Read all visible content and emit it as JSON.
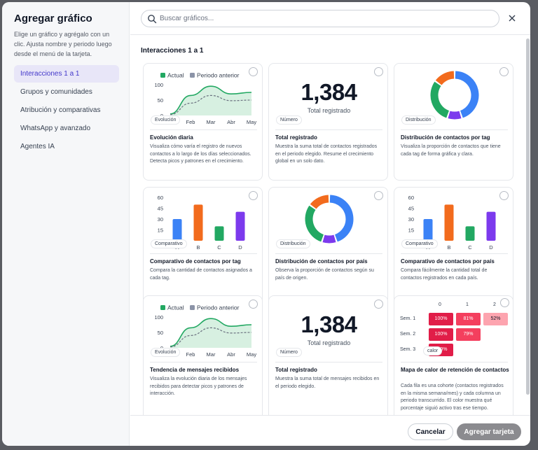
{
  "sidebar": {
    "title": "Agregar gráfico",
    "description": "Elige un gráfico y agrégalo con un clic. Ajusta nombre y periodo luego desde el menú de la tarjeta.",
    "items": [
      {
        "label": "Interacciones 1 a 1",
        "active": true
      },
      {
        "label": "Grupos y comunidades",
        "active": false
      },
      {
        "label": "Atribución y comparativas",
        "active": false
      },
      {
        "label": "WhatsApp y avanzado",
        "active": false
      },
      {
        "label": "Agentes IA",
        "active": false
      }
    ]
  },
  "search": {
    "placeholder": "Buscar gráficos...",
    "value": ""
  },
  "section": {
    "title": "Interacciones 1 a 1"
  },
  "colors": {
    "accent": "#4338ca",
    "green": "#22a862",
    "blue": "#3b82f6",
    "orange": "#f26b1d",
    "purple": "#7c3aed",
    "heat_dark": "#e11d48",
    "heat_light": "#f87185"
  },
  "cards": [
    {
      "badge": "Evolución",
      "title": "Evolución diaria",
      "desc": "Visualiza cómo varía el registro de nuevos contactos a lo largo de los días seleccionados. Detecta picos y patrones en el crecimiento."
    },
    {
      "badge": "Número",
      "title": "Total registrado",
      "desc": "Muestra la suma total de contactos registrados en el periodo elegido. Resume el crecimiento global en un solo dato.",
      "value": "1,384",
      "sub": "Total registrado"
    },
    {
      "badge": "Distribución",
      "title": "Distribución de contactos por tag",
      "desc": "Visualiza la proporción de contactos que tiene cada tag de forma gráfica y clara."
    },
    {
      "badge": "Comparativo",
      "title": "Comparativo de contactos por tag",
      "desc": "Compara la cantidad de contactos asignados a cada tag."
    },
    {
      "badge": "Distribución",
      "title": "Distribución de contactos por país",
      "desc": "Observa la proporción de contactos según su país de origen."
    },
    {
      "badge": "Comparativo",
      "title": "Comparativo de contactos por país",
      "desc": "Compara fácilmente la cantidad total de contactos registrados en cada país."
    },
    {
      "badge": "Evolución",
      "title": "Tendencia de mensajes recibidos",
      "desc": "Visualiza la evolución diaria de los mensajes recibidos para detectar picos y patrones de interacción."
    },
    {
      "badge": "Número",
      "title": "Total registrado",
      "desc": "Muestra la suma total de mensajes recibidos en el periodo elegido.",
      "value": "1,384",
      "sub": "Total registrado"
    },
    {
      "badge": "calor",
      "title": "Mapa de calor de retención de contactos",
      "desc": "Cada fila es una cohorte (contactos registrados en la misma semana/mes) y cada columna un periodo transcurrido. El color muestra qué porcentaje siguió activo tras ese tiempo."
    }
  ],
  "line_chart": {
    "legend": [
      "Actual",
      "Periodo anterior"
    ],
    "categories": [
      "Jan",
      "Feb",
      "Mar",
      "Abr",
      "May"
    ],
    "ticks": [
      "100",
      "50",
      "0"
    ],
    "actual": [
      5,
      65,
      95,
      70,
      75
    ],
    "anterior": [
      3,
      40,
      65,
      48,
      50
    ],
    "ylim": [
      0,
      100
    ]
  },
  "donut": {
    "segments": [
      {
        "value": 45,
        "color": "#3b82f6"
      },
      {
        "value": 10,
        "color": "#7c3aed"
      },
      {
        "value": 30,
        "color": "#22a862"
      },
      {
        "value": 15,
        "color": "#f26b1d"
      }
    ]
  },
  "bar_chart": {
    "categories": [
      "A",
      "B",
      "C",
      "D"
    ],
    "values": [
      30,
      50,
      20,
      40
    ],
    "colors": [
      "#3b82f6",
      "#f26b1d",
      "#22a862",
      "#7c3aed"
    ],
    "ticks": [
      "60",
      "45",
      "30",
      "15",
      "0"
    ],
    "ylim": [
      0,
      60
    ]
  },
  "heatmap": {
    "cols": [
      "0",
      "1",
      "2"
    ],
    "rows": [
      {
        "label": "Sem. 1",
        "values": [
          "100%",
          "81%",
          "52%"
        ]
      },
      {
        "label": "Sem. 2",
        "values": [
          "100%",
          "79%"
        ]
      },
      {
        "label": "Sem. 3",
        "values": [
          "100%"
        ]
      }
    ]
  },
  "footer": {
    "cancel": "Cancelar",
    "add": "Agregar tarjeta"
  }
}
